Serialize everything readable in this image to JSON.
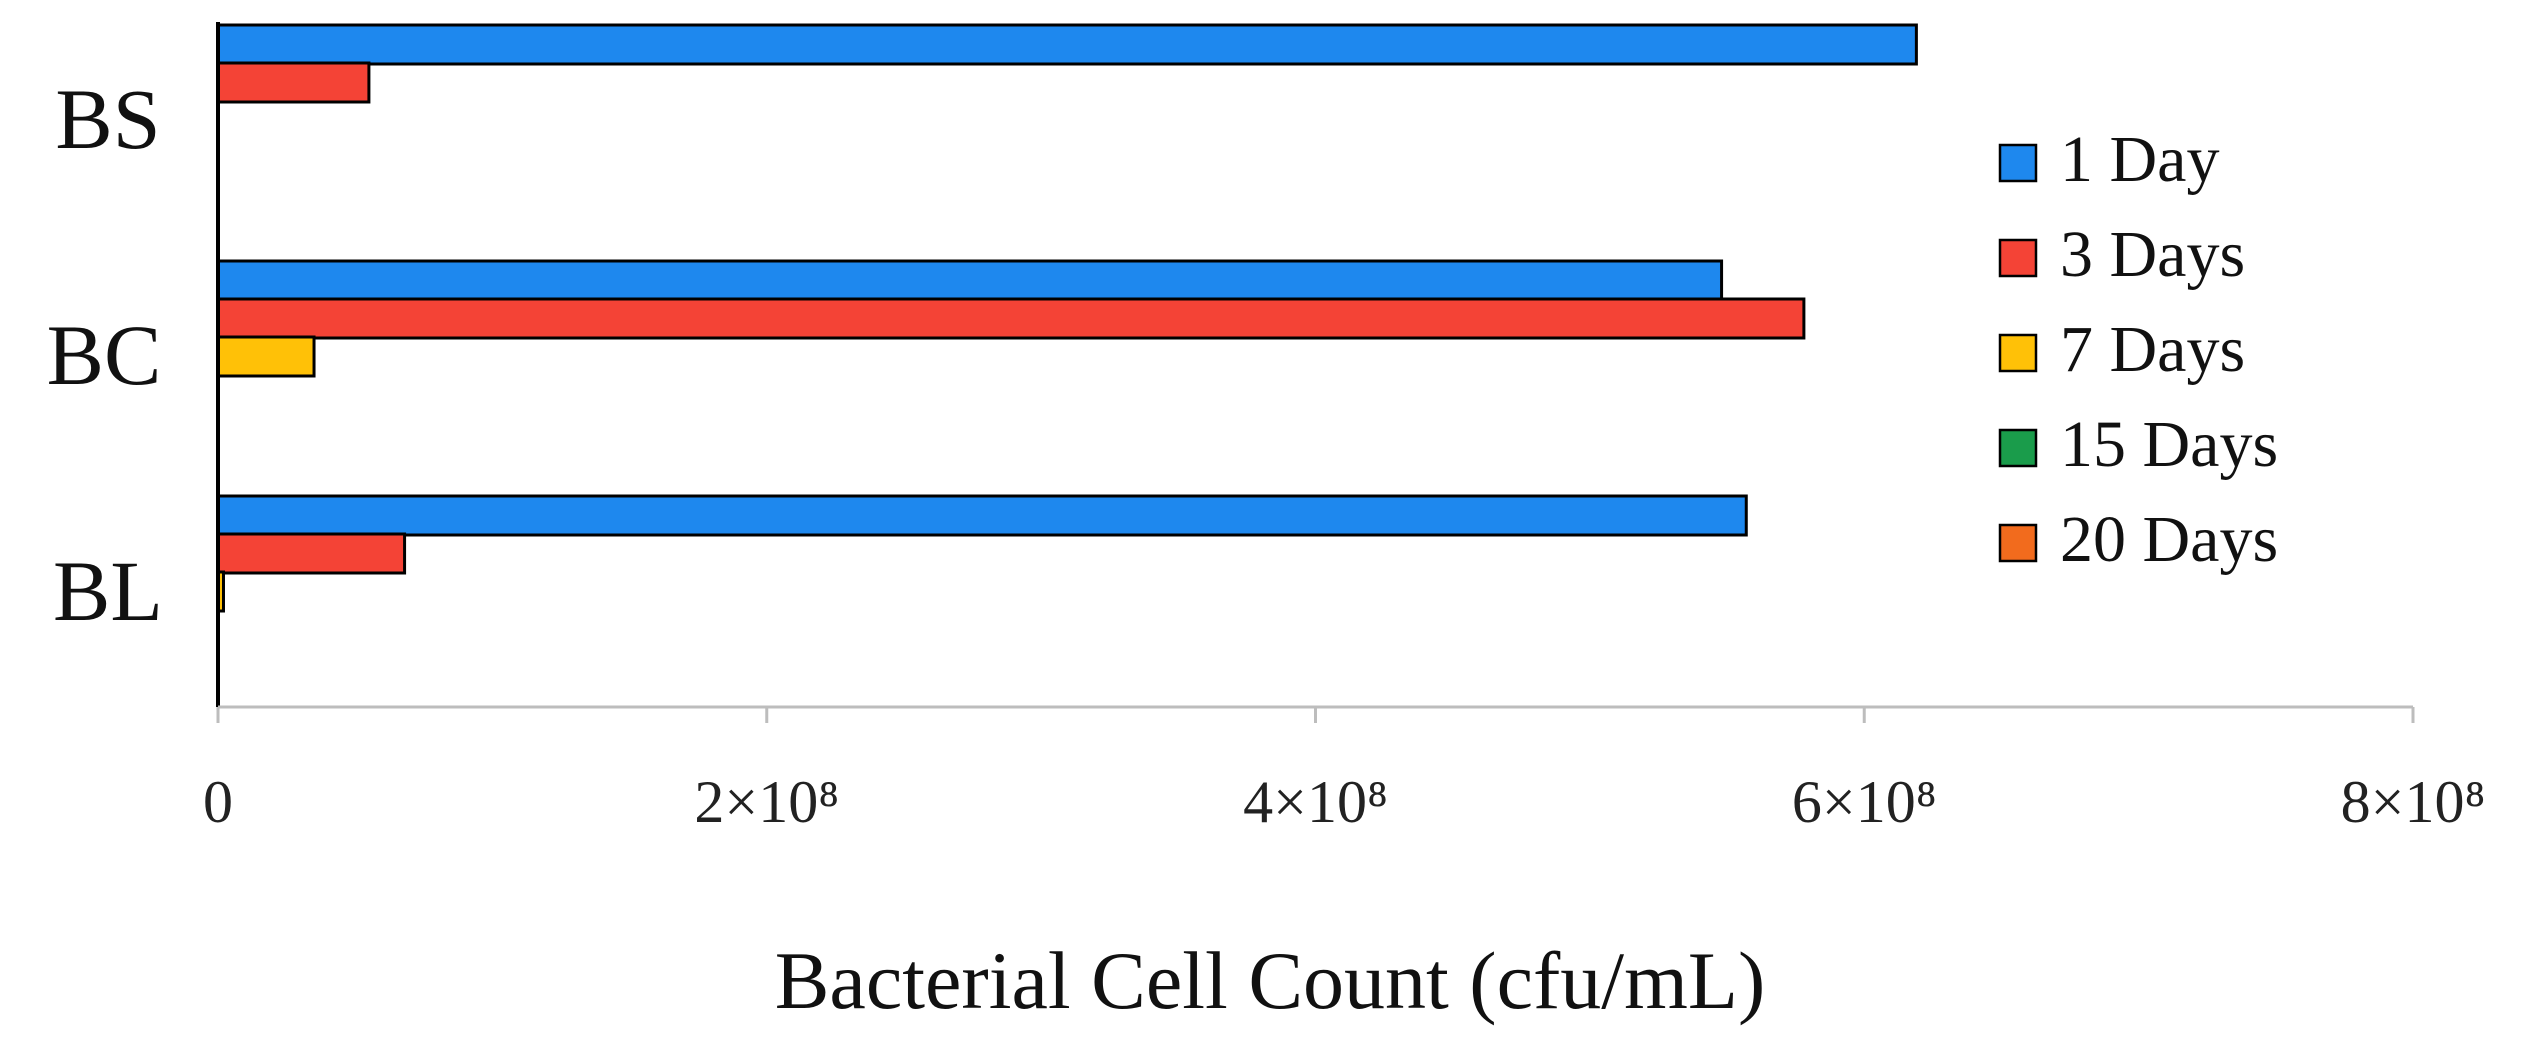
{
  "chart_data": {
    "type": "bar",
    "orientation": "horizontal",
    "categories": [
      "BS",
      "BC",
      "BL"
    ],
    "series": [
      {
        "name": "1 Day",
        "color": "#1e88ee",
        "values": [
          619000000,
          548000000,
          557000000
        ]
      },
      {
        "name": "3 Days",
        "color": "#f44336",
        "values": [
          55000000,
          578000000,
          68000000
        ]
      },
      {
        "name": "7 Days",
        "color": "#ffc107",
        "values": [
          0,
          35000000,
          2000000
        ]
      },
      {
        "name": "15 Days",
        "color": "#1a9c4b",
        "values": [
          0,
          0,
          0
        ]
      },
      {
        "name": "20 Days",
        "color": "#f26b1d",
        "values": [
          0,
          0,
          0
        ]
      }
    ],
    "xlabel": "Bacterial Cell Count (cfu/mL)",
    "ylabel": "",
    "title": "",
    "xlim": [
      0,
      800000000
    ],
    "xticks": [
      {
        "value": 0,
        "label": "0"
      },
      {
        "value": 200000000,
        "label": "2×10⁸"
      },
      {
        "value": 400000000,
        "label": "4×10⁸"
      },
      {
        "value": 600000000,
        "label": "6×10⁸"
      },
      {
        "value": 800000000,
        "label": "8×10⁸"
      }
    ],
    "grid": false,
    "legend_position": "right"
  }
}
